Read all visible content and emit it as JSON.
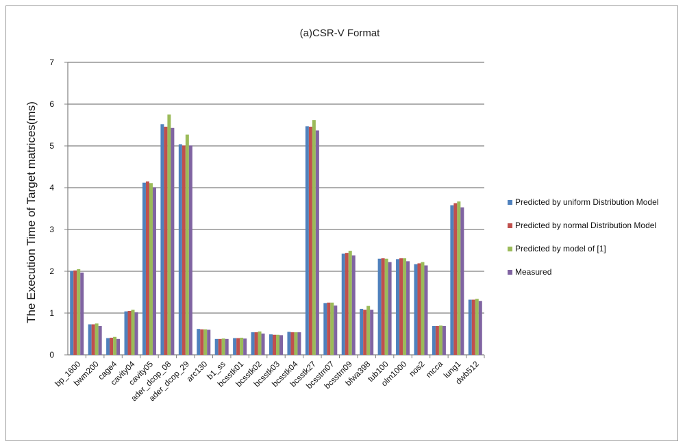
{
  "chart_data": {
    "type": "bar",
    "title": "(a)CSR-V Format",
    "xlabel": "",
    "ylabel": "The Execution Time of Target matrices(ms)",
    "ylim": [
      0,
      7
    ],
    "yticks": [
      0,
      1,
      2,
      3,
      4,
      5,
      6,
      7
    ],
    "grid": true,
    "legend_position": "right",
    "categories": [
      "bp_1600",
      "bwm200",
      "cage4",
      "cavity04",
      "cavity05",
      "ader_dcop_08",
      "ader_dcop_29",
      "arc130",
      "b1_ss",
      "bcsstk01",
      "bcsstk02",
      "bcsstk03",
      "bcsstk04",
      "bcsstk27",
      "bcsstm07",
      "bcsstm09",
      "bfwa398",
      "tub100",
      "olm1000",
      "nos2",
      "mcca",
      "lung1",
      "dwb512"
    ],
    "series": [
      {
        "name": "Predicted by uniform Distribution Model",
        "color": "#4f81bd",
        "values": [
          2.01,
          0.73,
          0.4,
          1.04,
          4.12,
          5.52,
          5.04,
          0.62,
          0.38,
          0.4,
          0.54,
          0.49,
          0.55,
          5.47,
          1.24,
          2.42,
          1.1,
          2.3,
          2.29,
          2.17,
          0.69,
          3.58,
          1.32
        ]
      },
      {
        "name": "Predicted by normal Distribution Model",
        "color": "#c0504d",
        "values": [
          2.02,
          0.73,
          0.41,
          1.05,
          4.15,
          5.46,
          5.01,
          0.61,
          0.38,
          0.4,
          0.54,
          0.48,
          0.54,
          5.46,
          1.25,
          2.44,
          1.08,
          2.31,
          2.31,
          2.19,
          0.69,
          3.63,
          1.32
        ]
      },
      {
        "name": "Predicted by model of [1]",
        "color": "#9bbb59",
        "values": [
          2.05,
          0.75,
          0.43,
          1.08,
          4.11,
          5.75,
          5.27,
          0.61,
          0.39,
          0.41,
          0.56,
          0.48,
          0.54,
          5.62,
          1.25,
          2.49,
          1.17,
          2.3,
          2.31,
          2.22,
          0.7,
          3.67,
          1.34
        ]
      },
      {
        "name": "Measured",
        "color": "#8064a2",
        "values": [
          1.97,
          0.69,
          0.38,
          1.02,
          4.01,
          5.43,
          5.01,
          0.6,
          0.38,
          0.39,
          0.51,
          0.47,
          0.54,
          5.37,
          1.18,
          2.38,
          1.08,
          2.22,
          2.24,
          2.14,
          0.69,
          3.53,
          1.29
        ]
      }
    ]
  }
}
